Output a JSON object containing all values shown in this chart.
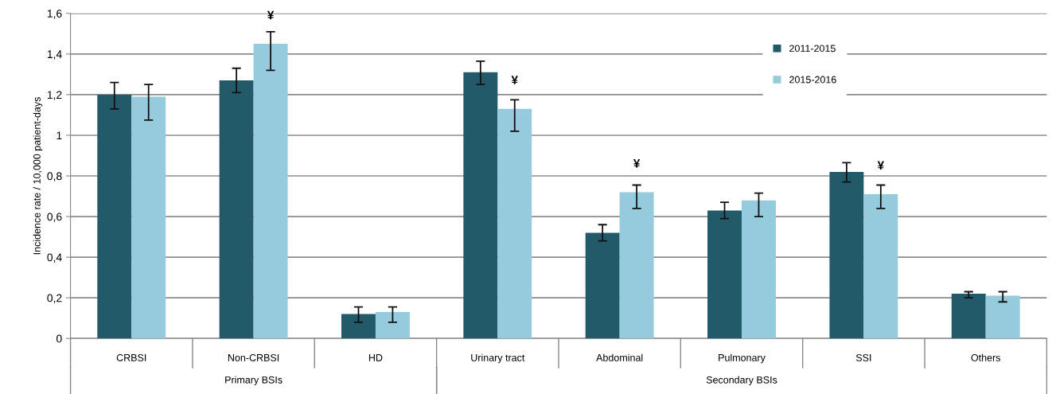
{
  "chart_data": {
    "type": "bar",
    "ylabel": "Incidence rate / 10,000 patient-days",
    "categories": [
      "CRBSI",
      "Non-CRBSI",
      "HD",
      "Urinary tract",
      "Abdominal",
      "Pulmonary",
      "SSI",
      "Others"
    ],
    "series": [
      {
        "name": "2011-2015",
        "color": "#225a69",
        "values": [
          1.2,
          1.27,
          0.12,
          1.31,
          0.52,
          0.63,
          0.82,
          0.22
        ],
        "errors": [
          [
            1.13,
            1.26
          ],
          [
            1.21,
            1.33
          ],
          [
            0.08,
            0.155
          ],
          [
            1.25,
            1.365
          ],
          [
            0.48,
            0.56
          ],
          [
            0.59,
            0.67
          ],
          [
            0.77,
            0.865
          ],
          [
            0.2,
            0.23
          ]
        ]
      },
      {
        "name": "2015-2016",
        "color": "#95cbdc",
        "values": [
          1.19,
          1.45,
          0.13,
          1.13,
          0.72,
          0.68,
          0.71,
          0.21
        ],
        "errors": [
          [
            1.075,
            1.25
          ],
          [
            1.32,
            1.51
          ],
          [
            0.08,
            0.155
          ],
          [
            1.02,
            1.175
          ],
          [
            0.64,
            0.755
          ],
          [
            0.6,
            0.715
          ],
          [
            0.64,
            0.755
          ],
          [
            0.18,
            0.23
          ]
        ]
      }
    ],
    "ylim": [
      0,
      1.6
    ],
    "yticks": [
      0,
      {
        "value": 0.2,
        "label": "0,2"
      },
      {
        "value": 0.4,
        "label": "0,4"
      },
      {
        "value": 0.6,
        "label": "0,6"
      },
      {
        "value": 0.8,
        "label": "0,8"
      },
      1,
      {
        "value": 1.2,
        "label": "1,2"
      },
      {
        "value": 1.4,
        "label": "1,4"
      },
      {
        "value": 1.6,
        "label": "1,6"
      }
    ],
    "grid": "y",
    "legend": "top right",
    "annotations": [
      {
        "text": "¥",
        "x": "Non-CRBSI",
        "y": 1.45
      },
      {
        "text": "¥",
        "x": "Urinary tract",
        "y": 1.13
      },
      {
        "text": "¥",
        "x": "Abdominal",
        "y": 0.72
      },
      {
        "text": "¥",
        "x": "SSI",
        "y": 0.71
      },
      "Primary BSIs",
      "Secondary BSIs"
    ]
  }
}
